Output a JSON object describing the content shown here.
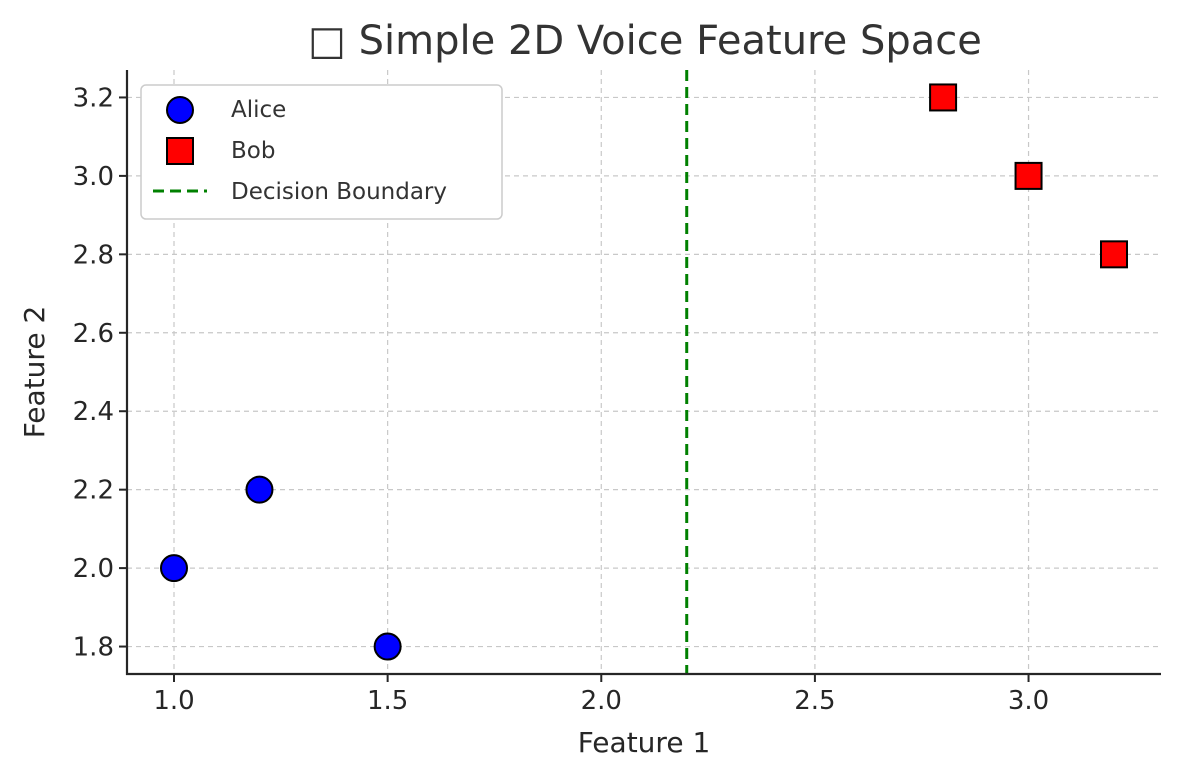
{
  "chart_data": {
    "type": "scatter",
    "title": "□ Simple 2D Voice Feature Space",
    "xlabel": "Feature 1",
    "ylabel": "Feature 2",
    "xlim": [
      0.89,
      3.31
    ],
    "ylim": [
      1.73,
      3.27
    ],
    "xticks": [
      1.0,
      1.5,
      2.0,
      2.5,
      3.0
    ],
    "xtick_labels": [
      "1.0",
      "1.5",
      "2.0",
      "2.5",
      "3.0"
    ],
    "yticks": [
      1.8,
      2.0,
      2.2,
      2.4,
      2.6,
      2.8,
      3.0,
      3.2
    ],
    "ytick_labels": [
      "1.8",
      "2.0",
      "2.2",
      "2.4",
      "2.6",
      "2.8",
      "3.0",
      "3.2"
    ],
    "grid": true,
    "legend_position": "top-left",
    "series": [
      {
        "name": "Alice",
        "marker": "circle",
        "color": "#0000ff",
        "points": [
          [
            1.0,
            2.0
          ],
          [
            1.2,
            2.2
          ],
          [
            1.5,
            1.8
          ]
        ]
      },
      {
        "name": "Bob",
        "marker": "square",
        "color": "#ff0000",
        "points": [
          [
            2.8,
            3.2
          ],
          [
            3.0,
            3.0
          ],
          [
            3.2,
            2.8
          ]
        ]
      }
    ],
    "decision_boundary": {
      "name": "Decision Boundary",
      "x": 2.2,
      "style": "dashed",
      "color": "#008000"
    }
  }
}
